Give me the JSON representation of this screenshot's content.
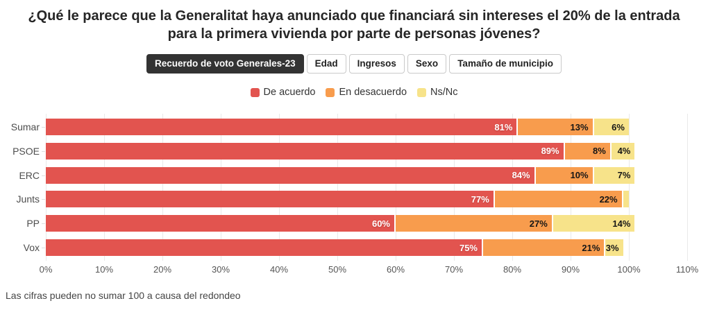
{
  "title": "¿Qué le parece que la Generalitat haya anunciado que financiará sin intereses el 20% de la entrada para la primera vivienda por parte de personas jóvenes?",
  "tabs": [
    {
      "label": "Recuerdo de voto Generales-23",
      "active": true
    },
    {
      "label": "Edad",
      "active": false
    },
    {
      "label": "Ingresos",
      "active": false
    },
    {
      "label": "Sexo",
      "active": false
    },
    {
      "label": "Tamaño de municipio",
      "active": false
    }
  ],
  "legend": [
    {
      "label": "De acuerdo",
      "color": "#e2544f"
    },
    {
      "label": "En desacuerdo",
      "color": "#f89c4d"
    },
    {
      "label": "Ns/Nc",
      "color": "#f7e38a"
    }
  ],
  "footer": "Las cifras pueden no sumar 100 a causa del redondeo",
  "colors": {
    "agree": "#e2544f",
    "disagree": "#f89c4d",
    "nsnc": "#f7e38a",
    "active_tab": "#333333"
  },
  "chart_data": {
    "type": "bar",
    "orientation": "horizontal",
    "stacked": true,
    "title": "¿Qué le parece que la Generalitat haya anunciado que financiará sin intereses el 20% de la entrada para la primera vivienda por parte de personas jóvenes?",
    "categories": [
      "Sumar",
      "PSOE",
      "ERC",
      "Junts",
      "PP",
      "Vox"
    ],
    "series": [
      {
        "name": "De acuerdo",
        "color": "#e2544f",
        "values": [
          81,
          89,
          84,
          77,
          60,
          75
        ]
      },
      {
        "name": "En desacuerdo",
        "color": "#f89c4d",
        "values": [
          13,
          8,
          10,
          22,
          27,
          21
        ]
      },
      {
        "name": "Ns/Nc",
        "color": "#f7e38a",
        "values": [
          6,
          4,
          7,
          1,
          14,
          3
        ]
      }
    ],
    "data_labels": [
      [
        "81%",
        "13%",
        "6%"
      ],
      [
        "89%",
        "8%",
        "4%"
      ],
      [
        "84%",
        "10%",
        "7%"
      ],
      [
        "77%",
        "22%",
        ""
      ],
      [
        "60%",
        "27%",
        "14%"
      ],
      [
        "75%",
        "21%",
        "3%"
      ]
    ],
    "x_ticks": [
      "0%",
      "10%",
      "20%",
      "30%",
      "40%",
      "50%",
      "60%",
      "70%",
      "80%",
      "90%",
      "100%",
      "110%"
    ],
    "xlim": [
      0,
      110
    ],
    "grid": true,
    "legend_position": "top",
    "note": "Las cifras pueden no sumar 100 a causa del redondeo"
  }
}
